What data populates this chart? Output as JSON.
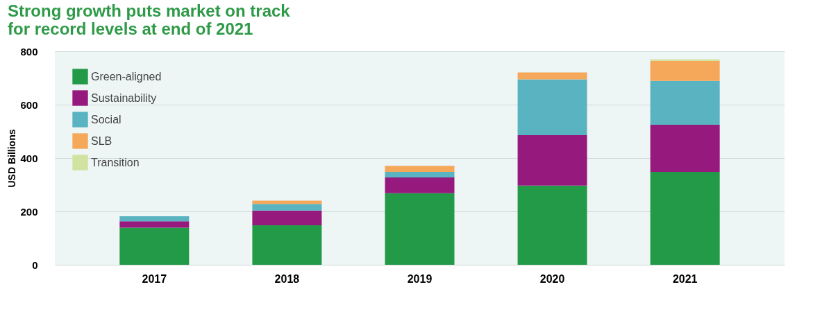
{
  "chart_data": {
    "type": "bar",
    "title": "Strong growth puts market on track\nfor record levels at end of 2021",
    "ylabel": "USD Billions",
    "categories": [
      "2017",
      "2018",
      "2019",
      "2020",
      "2021"
    ],
    "stacked": true,
    "series": [
      {
        "name": "Green-aligned",
        "color": "#239a48",
        "values": [
          139,
          148,
          268,
          297,
          348
        ]
      },
      {
        "name": "Sustainability",
        "color": "#961a7e",
        "values": [
          24,
          55,
          59,
          189,
          177
        ]
      },
      {
        "name": "Social",
        "color": "#5ab3c1",
        "values": [
          19,
          25,
          21,
          209,
          164
        ]
      },
      {
        "name": "SLB",
        "color": "#f5a75a",
        "values": [
          null,
          12,
          23,
          26,
          75
        ]
      },
      {
        "name": "Transition",
        "color": "#d0e3a0",
        "values": [
          null,
          null,
          null,
          null,
          6
        ]
      }
    ],
    "ylim": [
      0,
      800
    ],
    "yticks": [
      0,
      200,
      400,
      600,
      800
    ],
    "grid": "y",
    "legend": "top left"
  }
}
